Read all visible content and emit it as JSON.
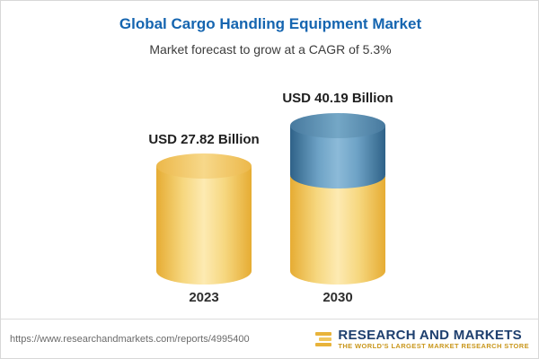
{
  "title": "Global Cargo Handling Equipment Market",
  "subtitle": "Market forecast to grow at a CAGR of 5.3%",
  "chart_data": {
    "type": "bar",
    "variant": "3d-cylinder",
    "title": "Global Cargo Handling Equipment Market",
    "subtitle": "Market forecast to grow at a CAGR of 5.3%",
    "unit": "USD Billion",
    "categories": [
      "2023",
      "2030"
    ],
    "values": [
      27.82,
      40.19
    ],
    "cagr_percent": 5.3,
    "bars": [
      {
        "category": "2023",
        "value": 27.82,
        "label": "USD 27.82 Billion",
        "color": "#f0c55c"
      },
      {
        "category": "2030",
        "value": 40.19,
        "label": "USD 40.19 Billion",
        "colors": [
          "#f0c55c",
          "#4a83ad"
        ],
        "segment_note": "top segment shaded blue"
      }
    ],
    "legend": "none",
    "gridlines": false,
    "axis_labels": {
      "x": "",
      "y": ""
    }
  },
  "footer": {
    "url": "https://www.researchandmarkets.com/reports/4995400",
    "brand_name": "RESEARCH AND MARKETS",
    "brand_tagline": "THE WORLD'S LARGEST MARKET RESEARCH STORE"
  },
  "colors": {
    "title_blue": "#1565b0",
    "cylinder_gold": "#f0c55c",
    "cylinder_blue": "#4a83ad",
    "brand_navy": "#1e3f6e",
    "brand_gold": "#c9971c"
  }
}
